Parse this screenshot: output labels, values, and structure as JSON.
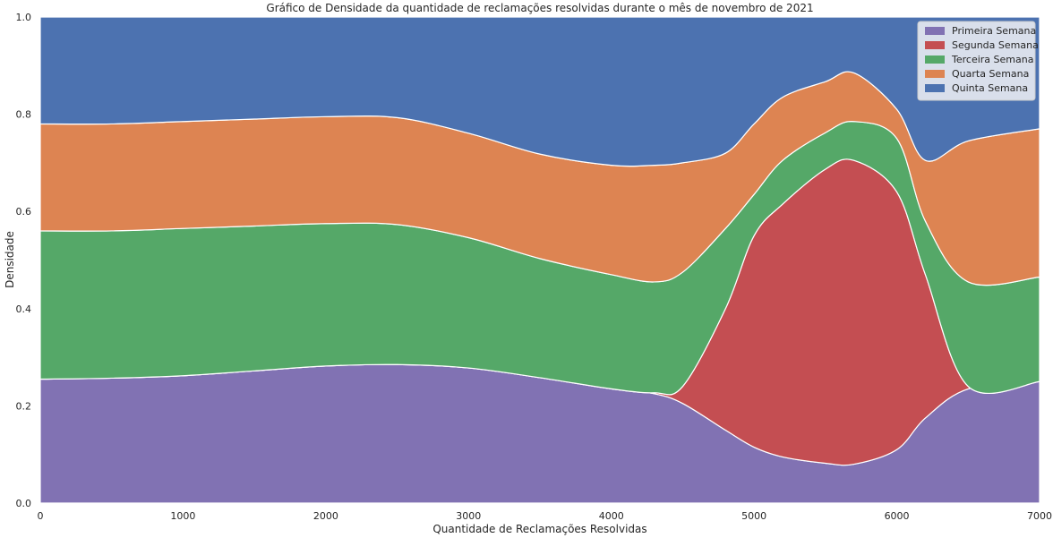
{
  "chart_data": {
    "type": "area",
    "stacked": true,
    "normalized": true,
    "title": "Gráfico de Densidade da quantidade de reclamações resolvidas durante o mês de novembro de 2021",
    "xlabel": "Quantidade de Reclamações Resolvidas",
    "ylabel": "Densidade",
    "xlim": [
      0,
      7000
    ],
    "ylim": [
      0,
      1
    ],
    "xticks": [
      "0",
      "1000",
      "2000",
      "3000",
      "4000",
      "5000",
      "6000",
      "7000"
    ],
    "yticks": [
      "0.0",
      "0.2",
      "0.4",
      "0.6",
      "0.8",
      "1.0"
    ],
    "grid": false,
    "legend_position": "top-right",
    "x": [
      0,
      500,
      1000,
      1500,
      2000,
      2500,
      3000,
      3500,
      4000,
      4300,
      4500,
      4800,
      5000,
      5200,
      5500,
      5700,
      6000,
      6200,
      6500,
      7000
    ],
    "series": [
      {
        "name": "Primeira Semana",
        "color": "#8172b3",
        "values": [
          0.255,
          0.257,
          0.262,
          0.272,
          0.282,
          0.285,
          0.278,
          0.258,
          0.235,
          0.225,
          0.205,
          0.15,
          0.115,
          0.095,
          0.082,
          0.08,
          0.11,
          0.175,
          0.235,
          0.25
        ]
      },
      {
        "name": "Segunda Semana",
        "color": "#c44e52",
        "values": [
          0,
          0,
          0,
          0,
          0,
          0,
          0,
          0,
          0,
          0.002,
          0.035,
          0.25,
          0.435,
          0.52,
          0.605,
          0.625,
          0.53,
          0.295,
          0.005,
          0
        ]
      },
      {
        "name": "Terceira Semana",
        "color": "#55a868",
        "values": [
          0.305,
          0.303,
          0.303,
          0.298,
          0.293,
          0.288,
          0.268,
          0.245,
          0.235,
          0.228,
          0.235,
          0.165,
          0.085,
          0.09,
          0.075,
          0.08,
          0.11,
          0.11,
          0.215,
          0.215
        ]
      },
      {
        "name": "Quarta Semana",
        "color": "#dd8452",
        "values": [
          0.22,
          0.22,
          0.22,
          0.22,
          0.22,
          0.22,
          0.215,
          0.215,
          0.225,
          0.24,
          0.225,
          0.155,
          0.145,
          0.13,
          0.105,
          0.1,
          0.06,
          0.125,
          0.29,
          0.305
        ]
      },
      {
        "name": "Quinta Semana",
        "color": "#4c72b0",
        "values": [
          0.22,
          0.22,
          0.215,
          0.21,
          0.205,
          0.207,
          0.239,
          0.282,
          0.305,
          0.305,
          0.3,
          0.28,
          0.22,
          0.165,
          0.133,
          0.115,
          0.19,
          0.295,
          0.255,
          0.23
        ]
      }
    ]
  }
}
